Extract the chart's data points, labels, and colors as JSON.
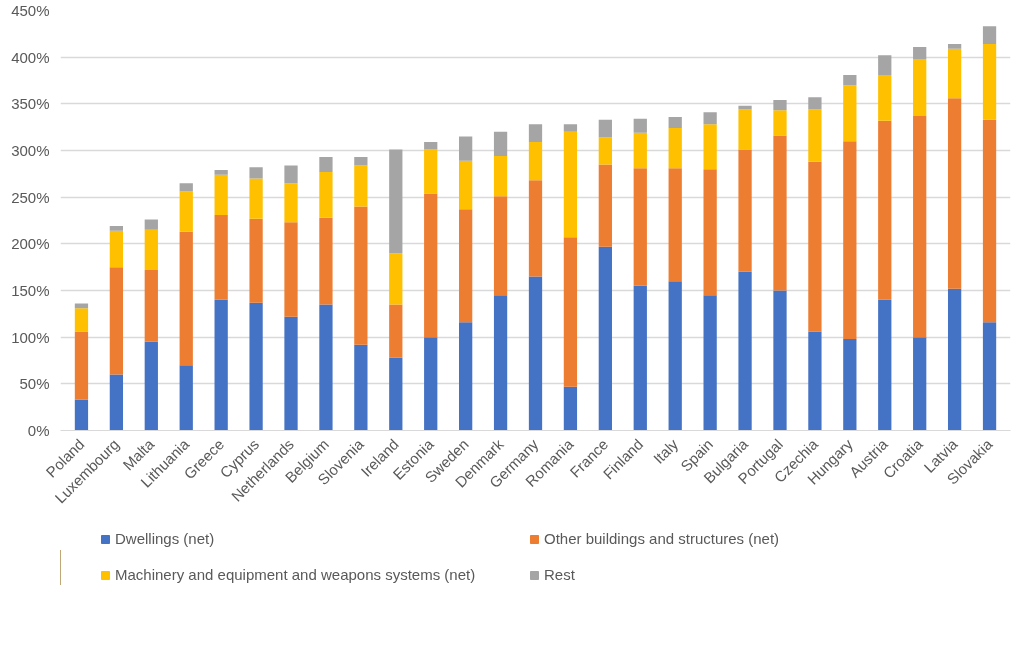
{
  "chart_data": {
    "type": "bar",
    "stacked": true,
    "categories": [
      "Poland",
      "Luxembourg",
      "Malta",
      "Lithuania",
      "Greece",
      "Cyprus",
      "Netherlands",
      "Belgium",
      "Slovenia",
      "Ireland",
      "Estonia",
      "Sweden",
      "Denmark",
      "Germany",
      "Romania",
      "France",
      "Finland",
      "Italy",
      "Spain",
      "Bulgaria",
      "Portugal",
      "Czechia",
      "Hungary",
      "Austria",
      "Croatia",
      "Latvia",
      "Slovakia"
    ],
    "series": [
      {
        "name": "Dwellings (net)",
        "color": "#4472c4",
        "values": [
          33,
          60,
          95,
          70,
          140,
          137,
          122,
          135,
          92,
          78,
          100,
          116,
          145,
          165,
          47,
          197,
          155,
          160,
          145,
          170,
          150,
          106,
          98,
          140,
          100,
          152,
          116
        ]
      },
      {
        "name": "Other buildings and structures (net)",
        "color": "#ed7d31",
        "values": [
          73,
          115,
          77,
          143,
          91,
          90,
          101,
          93,
          148,
          57,
          154,
          121,
          106,
          103,
          160,
          88,
          126,
          121,
          135,
          131,
          166,
          182,
          212,
          192,
          237,
          204,
          217
        ]
      },
      {
        "name": "Machinery and equipment and weapons systems (net)",
        "color": "#ffc000",
        "values": [
          25,
          39,
          43,
          43,
          43,
          43,
          42,
          49,
          44,
          55,
          47,
          52,
          43,
          41,
          113,
          29,
          38,
          43,
          48,
          43,
          27,
          56,
          60,
          49,
          61,
          53,
          81
        ]
      },
      {
        "name": "Rest",
        "color": "#a5a5a5",
        "values": [
          5,
          5,
          11,
          9,
          5,
          12,
          19,
          16,
          9,
          111,
          8,
          26,
          26,
          19,
          8,
          19,
          15,
          12,
          13,
          4,
          11,
          13,
          11,
          21,
          13,
          5,
          19
        ]
      }
    ],
    "ylim": [
      0,
      450
    ],
    "yticks": [
      {
        "value": 0,
        "label": "0%"
      },
      {
        "value": 50,
        "label": "50%"
      },
      {
        "value": 100,
        "label": "100%"
      },
      {
        "value": 150,
        "label": "150%"
      },
      {
        "value": 200,
        "label": "200%"
      },
      {
        "value": 250,
        "label": "250%"
      },
      {
        "value": 300,
        "label": "300%"
      },
      {
        "value": 350,
        "label": "350%"
      },
      {
        "value": 400,
        "label": "400%"
      },
      {
        "value": 450,
        "label": "450%"
      }
    ],
    "grid": "y",
    "legend": "bottom"
  }
}
